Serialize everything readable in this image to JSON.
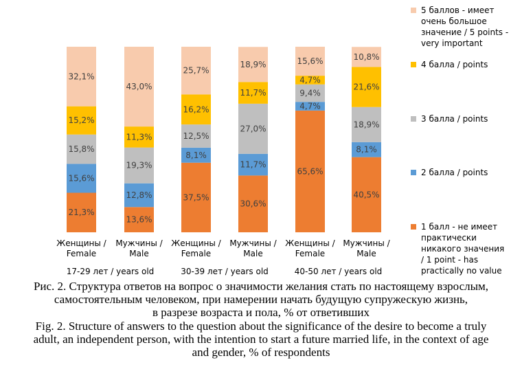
{
  "chart_data": {
    "type": "bar",
    "stacked": true,
    "categories": [
      "Женщины / Female",
      "Мужчины / Male",
      "Женщины / Female",
      "Мужчины / Male",
      "Женщины / Female",
      "Мужчины / Male"
    ],
    "category_lines": [
      [
        "Женщины /",
        "Female"
      ],
      [
        "Мужчины /",
        "Male"
      ],
      [
        "Женщины /",
        "Female"
      ],
      [
        "Мужчины /",
        "Male"
      ],
      [
        "Женщины /",
        "Female"
      ],
      [
        "Мужчины /",
        "Male"
      ]
    ],
    "groups": [
      {
        "label": "17-29 лет / years old",
        "members": [
          0,
          1
        ]
      },
      {
        "label": "30-39 лет / years old",
        "members": [
          2,
          3
        ]
      },
      {
        "label": "40-50 лет / years old",
        "members": [
          4,
          5
        ]
      }
    ],
    "series": [
      {
        "name": "1 балл - не имеет практически никакого значения / 1 point - has practically no value",
        "name_lines": [
          "1 балл - не имеет",
          "практически",
          "никакого значения",
          "/ 1 point - has",
          "practically no value"
        ],
        "color": "#ED7D31",
        "values": [
          21.3,
          13.6,
          37.5,
          30.6,
          65.6,
          40.5
        ],
        "labels": [
          "21,3%",
          "13,6%",
          "37,5%",
          "30,6%",
          "65,6%",
          "40,5%"
        ]
      },
      {
        "name": "2 балла / points",
        "name_lines": [
          "2 балла / points"
        ],
        "color": "#5B9BD5",
        "values": [
          15.6,
          12.8,
          8.1,
          11.7,
          4.7,
          8.1
        ],
        "labels": [
          "15,6%",
          "12,8%",
          "8,1%",
          "11,7%",
          "4,7%",
          "8,1%"
        ]
      },
      {
        "name": "3 балла / points",
        "name_lines": [
          "3 балла / points"
        ],
        "color": "#BFBFBF",
        "values": [
          15.8,
          19.3,
          12.5,
          27.0,
          9.4,
          18.9
        ],
        "labels": [
          "15,8%",
          "19,3%",
          "12,5%",
          "27,0%",
          "9,4%",
          "18,9%"
        ]
      },
      {
        "name": "4 балла / points",
        "name_lines": [
          "4 балла / points"
        ],
        "color": "#FFC000",
        "values": [
          15.2,
          11.3,
          16.2,
          11.7,
          4.7,
          21.6
        ],
        "labels": [
          "15,2%",
          "11,3%",
          "16,2%",
          "11,7%",
          "4,7%",
          "21,6%"
        ]
      },
      {
        "name": "5 баллов - имеет очень большое значение / 5 points - very important",
        "name_lines": [
          "5 баллов - имеет",
          "очень большое",
          "значение / 5 points -",
          "very important"
        ],
        "color": "#F8CBAD",
        "values": [
          32.1,
          43.0,
          25.7,
          18.9,
          15.6,
          10.8
        ],
        "labels": [
          "32,1%",
          "43,0%",
          "25,7%",
          "18,9%",
          "15,6%",
          "10,8%"
        ]
      }
    ],
    "ylim": [
      0,
      100
    ],
    "legend_position": "right",
    "grid": false
  },
  "caption": {
    "ru_lines": [
      "Рис. 2. Структура ответов на вопрос о значимости желания стать по настоящему взрослым,",
      "самостоятельным человеком, при намерении начать будущую супружескую жизнь,",
      "в разрезе возраста и пола, % от ответивших"
    ],
    "en_lines": [
      "Fig. 2. Structure of answers to the question about the significance of the desire to become a truly",
      "adult, an independent person, with the intention to start a future married life, in the context of age",
      "and gender, % of respondents"
    ]
  }
}
